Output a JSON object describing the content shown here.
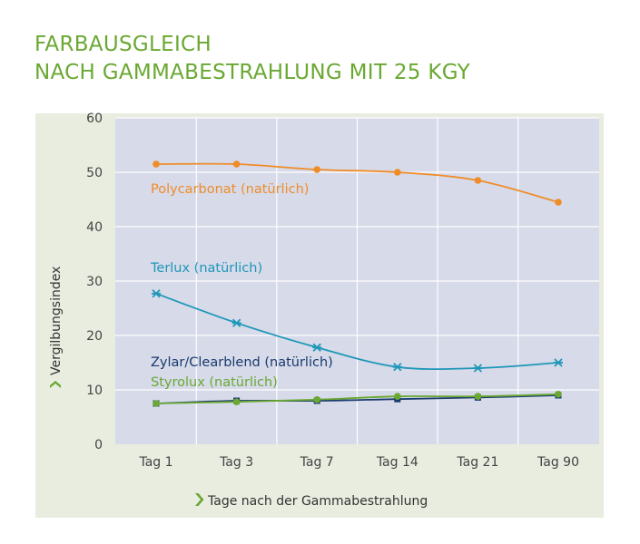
{
  "title_line1": "FARBAUSGLEICH",
  "title_line2": "NACH GAMMABESTRAHLUNG MIT 25 KGY",
  "colors": {
    "accent_green": "#6aa832",
    "plot_bg": "#d6dae9",
    "panel_bg": "#e8ede0",
    "polycarbonat": "#f08c28",
    "terlux": "#1f97b8",
    "zylar": "#1a3a6e",
    "styrolux": "#6aa832"
  },
  "chart_data": {
    "type": "line",
    "title": "",
    "xlabel": "Tage nach der Gammabestrahlung",
    "ylabel": "Vergilbungsindex",
    "categories": [
      "Tag 1",
      "Tag 3",
      "Tag 7",
      "Tag 14",
      "Tag 21",
      "Tag 90"
    ],
    "ylim": [
      0,
      60
    ],
    "yticks": [
      0,
      10,
      20,
      30,
      40,
      50,
      60
    ],
    "grid": true,
    "series": [
      {
        "name": "Polycarbonat (natürlich)",
        "values": [
          51.5,
          51.5,
          50.5,
          50.0,
          48.5,
          44.5
        ],
        "marker": "circle",
        "color_key": "polycarbonat"
      },
      {
        "name": "Terlux (natürlich)",
        "values": [
          27.7,
          22.3,
          17.8,
          14.2,
          14.0,
          15.0
        ],
        "marker": "star",
        "color_key": "terlux"
      },
      {
        "name": "Zylar/Clearblend (natürlich)",
        "values": [
          7.5,
          8.0,
          8.0,
          8.3,
          8.6,
          9.0
        ],
        "marker": "square",
        "color_key": "zylar"
      },
      {
        "name": "Styrolux (natürlich)",
        "values": [
          7.5,
          7.8,
          8.2,
          8.8,
          8.8,
          9.2
        ],
        "marker": "circle",
        "color_key": "styrolux"
      }
    ]
  }
}
